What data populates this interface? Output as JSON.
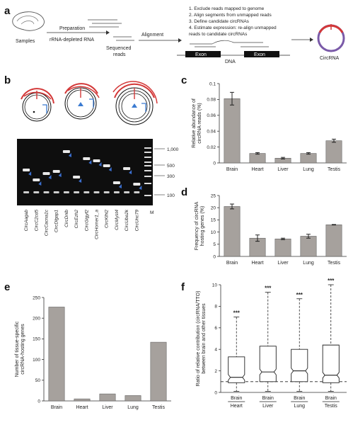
{
  "panels": {
    "a": "a",
    "b": "b",
    "c": "c",
    "d": "d",
    "e": "e",
    "f": "f"
  },
  "workflow": {
    "samples": "Samples",
    "preparation": "Preparation",
    "rrna": "rRNA-depleted RNA",
    "sequenced_line1": "Sequenced",
    "sequenced_line2": "reads",
    "alignment": "Alignment",
    "steps": [
      "1. Exclude reads mapped to genome",
      "2. Align segments from unmapped reads",
      "3. Define candidate circRNAs",
      "4. Estimate expression: re-align unmapped",
      "    reads to candidate circRNAs"
    ],
    "exon1": "Exon",
    "exon2": "Exon",
    "dna": "DNA",
    "circrna": "CircRNA"
  },
  "gel": {
    "markers": [
      "1,000",
      "500",
      "300",
      "100"
    ],
    "marker_lane": "M",
    "lanes": [
      "CircAagab",
      "CircC2cd5",
      "CircCacna1c",
      "CircDlgap1",
      "CircDnlb",
      "CircEzh2",
      "CircGigyf2",
      "CircHomer1_a",
      "CircKlhl2",
      "CircMyst4",
      "CircUbe2k",
      "CircUnc79"
    ]
  },
  "chart_data": [
    {
      "panel": "c",
      "type": "bar",
      "categories": [
        "Brain",
        "Heart",
        "Liver",
        "Lung",
        "Testis"
      ],
      "values": [
        0.081,
        0.012,
        0.006,
        0.012,
        0.028
      ],
      "errors": [
        0.008,
        0.001,
        0.001,
        0.001,
        0.002
      ],
      "ylabel_line1": "Relative abundance of",
      "ylabel_line2": "circRNA reads (%)",
      "ylim": [
        0,
        0.1
      ],
      "yticks": [
        "0",
        "0.02",
        "0.04",
        "0.06",
        "0.08",
        "0.1"
      ]
    },
    {
      "panel": "d",
      "type": "bar",
      "categories": [
        "Brain",
        "Heart",
        "Liver",
        "Lung",
        "Testis"
      ],
      "values": [
        20.5,
        7.5,
        7.2,
        8.3,
        13.0
      ],
      "errors": [
        1.0,
        1.3,
        0.3,
        0.8,
        0.1
      ],
      "ylabel_line1": "Frequency of circRNA",
      "ylabel_line2": "hosting genes (%)",
      "ylim": [
        0,
        25
      ],
      "yticks": [
        "0",
        "5",
        "10",
        "15",
        "20",
        "25"
      ]
    },
    {
      "panel": "e",
      "type": "bar",
      "categories": [
        "Brain",
        "Heart",
        "Liver",
        "Lung",
        "Testis"
      ],
      "values": [
        227,
        5,
        17,
        13,
        142
      ],
      "ylabel_line1": "Number of tissue-specific",
      "ylabel_line2": "circRNA-hosting genes",
      "ylim": [
        0,
        250
      ],
      "yticks": [
        "0",
        "50",
        "100",
        "150",
        "200",
        "250"
      ]
    },
    {
      "panel": "f",
      "type": "box",
      "categories": [
        {
          "top": "Brain",
          "bottom": "Heart"
        },
        {
          "top": "Brain",
          "bottom": "Liver"
        },
        {
          "top": "Brain",
          "bottom": "Lung"
        },
        {
          "top": "Brain",
          "bottom": "Testis"
        }
      ],
      "boxes": [
        {
          "whisker_low": 0.1,
          "q1": 0.9,
          "median": 1.4,
          "q3": 3.3,
          "whisker_high": 7.0
        },
        {
          "whisker_low": 0.1,
          "q1": 1.0,
          "median": 1.9,
          "q3": 4.3,
          "whisker_high": 9.3
        },
        {
          "whisker_low": 0.1,
          "q1": 1.0,
          "median": 2.0,
          "q3": 4.0,
          "whisker_high": 8.7
        },
        {
          "whisker_low": 0.1,
          "q1": 0.9,
          "median": 1.6,
          "q3": 4.4,
          "whisker_high": 10.0
        }
      ],
      "significance": [
        "***",
        "***",
        "***",
        "***"
      ],
      "reference_line": 1,
      "ylabel_line1": "Ratio of relative contribution (circRNA/TTO)",
      "ylabel_line2": "between brain and other tissues",
      "ylim": [
        0,
        10
      ],
      "yticks": [
        "0",
        "2",
        "4",
        "6",
        "8",
        "10"
      ]
    }
  ]
}
